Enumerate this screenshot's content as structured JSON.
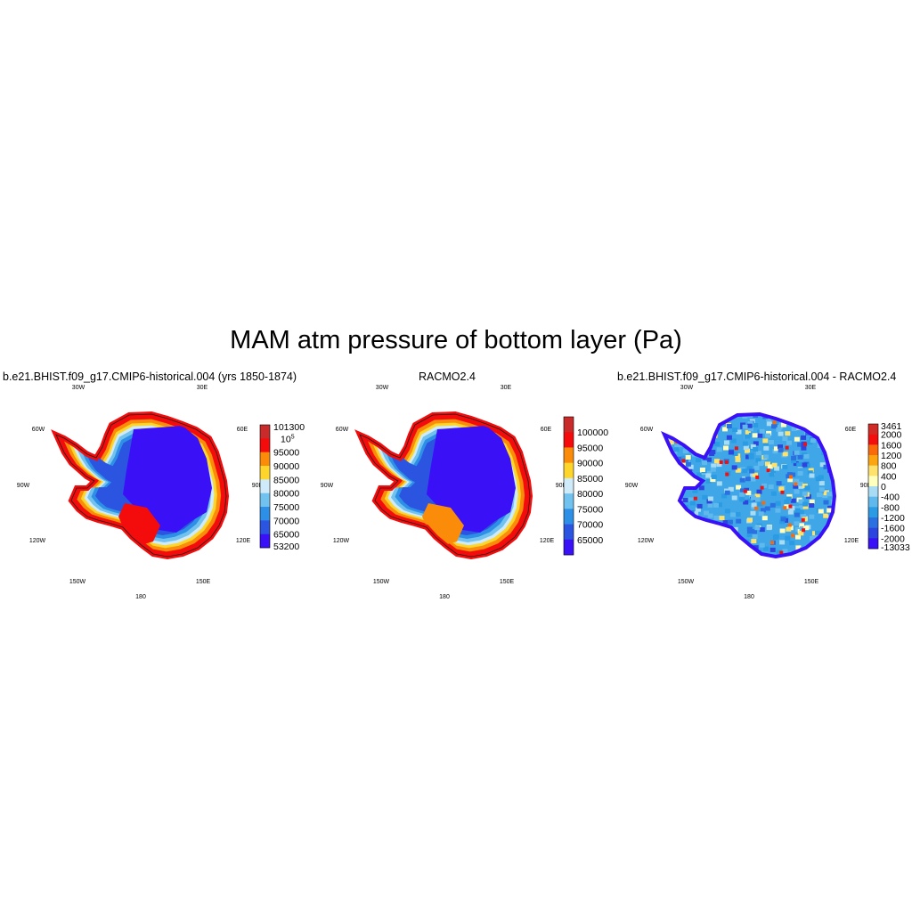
{
  "figure": {
    "title": "MAM atm pressure of bottom layer (Pa)"
  },
  "chart_data": [
    {
      "type": "heatmap",
      "title": "b.e21.BHIST.f09_g17.CMIP6-historical.004 (yrs 1850-1874)",
      "projection": "south-polar-stereographic",
      "longitude_labels": [
        "30W",
        "30E",
        "60W",
        "60E",
        "90W",
        "90E",
        "120W",
        "120E",
        "150W",
        "150E",
        "180"
      ],
      "colorbar": {
        "levels": [
          "101300",
          "10^5",
          "95000",
          "90000",
          "85000",
          "80000",
          "75000",
          "70000",
          "65000",
          "53200"
        ],
        "colors": [
          "#c92a2a",
          "#f40c0c",
          "#fa8c0a",
          "#fed52b",
          "#cfeaf9",
          "#71c2ee",
          "#2e8fe6",
          "#2b55e0",
          "#3a10f7"
        ]
      }
    },
    {
      "type": "heatmap",
      "title": "RACMO2.4",
      "projection": "south-polar-stereographic",
      "longitude_labels": [
        "30W",
        "30E",
        "60W",
        "60E",
        "90W",
        "90E",
        "120W",
        "120E",
        "150W",
        "150E",
        "180"
      ],
      "colorbar": {
        "levels": [
          "100000",
          "95000",
          "90000",
          "85000",
          "80000",
          "75000",
          "70000",
          "65000"
        ],
        "colors": [
          "#c92a2a",
          "#f40c0c",
          "#fa8c0a",
          "#fed52b",
          "#cfeaf9",
          "#71c2ee",
          "#2e8fe6",
          "#2b55e0",
          "#3a10f7"
        ]
      }
    },
    {
      "type": "heatmap",
      "title": "b.e21.BHIST.f09_g17.CMIP6-historical.004 - RACMO2.4",
      "projection": "south-polar-stereographic",
      "longitude_labels": [
        "30W",
        "30E",
        "60W",
        "60E",
        "90W",
        "90E",
        "120W",
        "120E",
        "150W",
        "150E",
        "180"
      ],
      "colorbar": {
        "levels": [
          "3461",
          "2000",
          "1600",
          "1200",
          "800",
          "400",
          "0",
          "-400",
          "-800",
          "-1200",
          "-1600",
          "-2000",
          "-13033"
        ],
        "colors": [
          "#d22a24",
          "#f40f0f",
          "#fa6a0a",
          "#fda50f",
          "#fee26b",
          "#ffffbe",
          "#a8dcf5",
          "#60b9ec",
          "#2b9be4",
          "#2b70e0",
          "#2b45de",
          "#3a10f7"
        ]
      }
    }
  ]
}
